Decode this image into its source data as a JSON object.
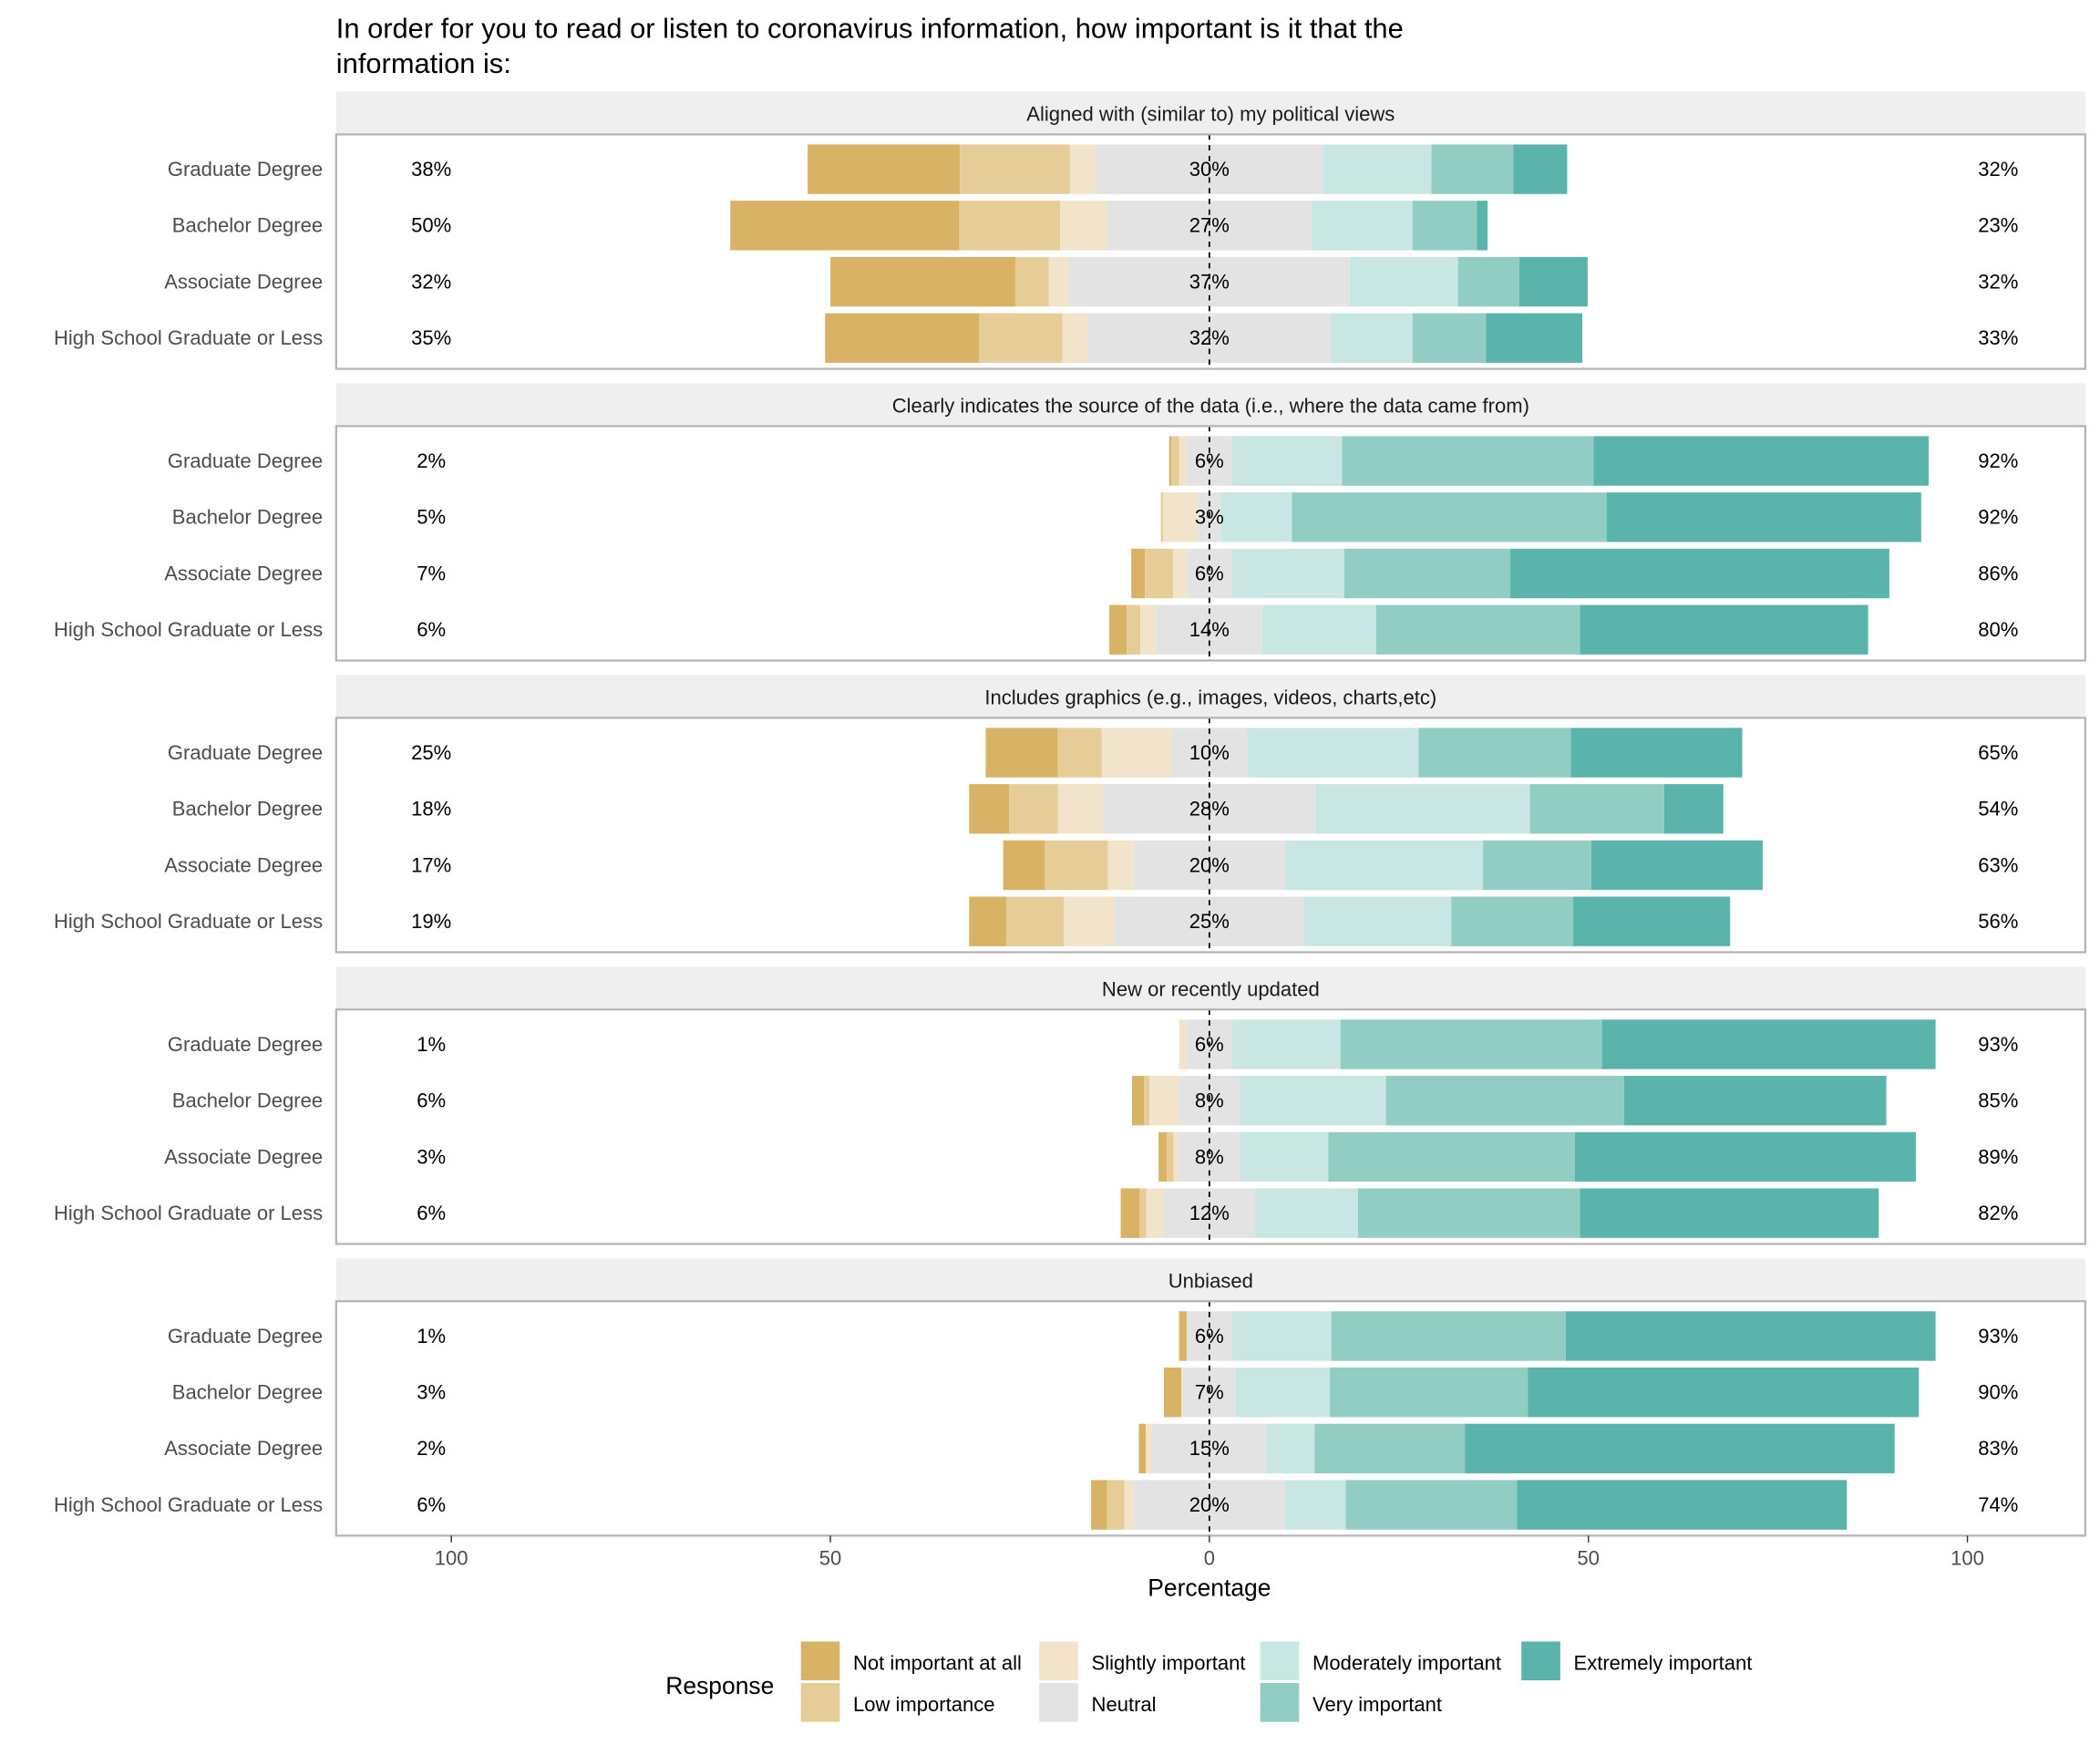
{
  "chart_data": {
    "type": "bar",
    "orientation": "horizontal-diverging-stacked",
    "title": "In order for you to read or listen to coronavirus information, how important is it that the information is:",
    "xlabel": "Percentage",
    "xlim": [
      -100,
      100
    ],
    "x_ticks": [
      -100,
      -50,
      0,
      50,
      100
    ],
    "x_tick_labels": [
      "100",
      "50",
      "0",
      "50",
      "100"
    ],
    "legend": {
      "title": "Response",
      "placement": "bottom",
      "entries": [
        "Not important at all",
        "Low importance",
        "Slightly important",
        "Neutral",
        "Moderately important",
        "Very important",
        "Extremely important"
      ]
    },
    "colors": [
      "#D8B365",
      "#E6CD98",
      "#F2E4CA",
      "#E3E3E3",
      "#C8E6E2",
      "#92CDC4",
      "#5AB4AC"
    ],
    "panels": [
      {
        "title": "Aligned with (similar to) my political views",
        "rows": [
          {
            "group": "Graduate Degree",
            "values": [
              20.1,
              14.5,
              3.4,
              30,
              14.3,
              10.8,
              7.1
            ],
            "left_label": "38%",
            "center_label": "30%",
            "right_label": "32%"
          },
          {
            "group": "Bachelor Degree",
            "values": [
              30.2,
              13.3,
              6.2,
              27,
              13.3,
              8.5,
              1.4
            ],
            "left_label": "50%",
            "center_label": "27%",
            "right_label": "23%"
          },
          {
            "group": "Associate Degree",
            "values": [
              24.4,
              4.4,
              2.7,
              37,
              14.3,
              8.1,
              9.0
            ],
            "left_label": "32%",
            "center_label": "37%",
            "right_label": "32%"
          },
          {
            "group": "High School Graduate or Less",
            "values": [
              20.3,
              11.0,
              3.4,
              32,
              10.8,
              9.7,
              12.7
            ],
            "left_label": "35%",
            "center_label": "32%",
            "right_label": "33%"
          }
        ]
      },
      {
        "title": "Clearly indicates the source of the data (i.e., where the data came from)",
        "rows": [
          {
            "group": "Graduate Degree",
            "values": [
              0.3,
              1.0,
              1.0,
              6,
              14.5,
              33.2,
              44.2
            ],
            "left_label": "2%",
            "center_label": "6%",
            "right_label": "92%"
          },
          {
            "group": "Bachelor Degree",
            "values": [
              0,
              0.3,
              4.6,
              3,
              9.4,
              41.5,
              41.5
            ],
            "left_label": "5%",
            "center_label": "3%",
            "right_label": "92%"
          },
          {
            "group": "Associate Degree",
            "values": [
              1.8,
              3.7,
              1.8,
              6,
              14.8,
              21.9,
              50.0
            ],
            "left_label": "7%",
            "center_label": "6%",
            "right_label": "86%"
          },
          {
            "group": "High School Graduate or Less",
            "values": [
              2.3,
              1.8,
              2.1,
              14,
              15.0,
              26.9,
              38.0
            ],
            "left_label": "6%",
            "center_label": "14%",
            "right_label": "80%"
          }
        ]
      },
      {
        "title": "Includes graphics (e.g., images, videos, charts,etc)",
        "rows": [
          {
            "group": "Graduate Degree",
            "values": [
              9.5,
              5.8,
              9.2,
              10,
              22.6,
              20.1,
              22.6
            ],
            "left_label": "25%",
            "center_label": "10%",
            "right_label": "65%"
          },
          {
            "group": "Bachelor Degree",
            "values": [
              5.3,
              6.4,
              6.0,
              28,
              28.3,
              17.7,
              7.8
            ],
            "left_label": "18%",
            "center_label": "28%",
            "right_label": "54%"
          },
          {
            "group": "Associate Degree",
            "values": [
              5.5,
              8.3,
              3.4,
              20,
              26.1,
              14.3,
              22.6
            ],
            "left_label": "17%",
            "center_label": "20%",
            "right_label": "63%"
          },
          {
            "group": "High School Graduate or Less",
            "values": [
              4.9,
              7.6,
              6.7,
              25,
              19.4,
              16.1,
              20.7
            ],
            "left_label": "19%",
            "center_label": "25%",
            "right_label": "56%"
          }
        ]
      },
      {
        "title": "New or recently updated",
        "rows": [
          {
            "group": "Graduate Degree",
            "values": [
              0,
              0,
              1.0,
              6,
              14.3,
              34.5,
              44.0
            ],
            "left_label": "1%",
            "center_label": "6%",
            "right_label": "93%"
          },
          {
            "group": "Bachelor Degree",
            "values": [
              1.6,
              0.7,
              3.9,
              8,
              19.3,
              31.4,
              34.6
            ],
            "left_label": "6%",
            "center_label": "8%",
            "right_label": "85%"
          },
          {
            "group": "Associate Degree",
            "values": [
              1.1,
              0.9,
              0.7,
              8,
              11.7,
              32.5,
              45.0
            ],
            "left_label": "3%",
            "center_label": "8%",
            "right_label": "89%"
          },
          {
            "group": "High School Graduate or Less",
            "values": [
              2.5,
              0.9,
              2.3,
              12,
              13.6,
              29.3,
              39.4
            ],
            "left_label": "6%",
            "center_label": "12%",
            "right_label": "82%"
          }
        ]
      },
      {
        "title": "Unbiased",
        "rows": [
          {
            "group": "Graduate Degree",
            "values": [
              1.0,
              0,
              0,
              6,
              13.1,
              30.9,
              48.8
            ],
            "left_label": "1%",
            "center_label": "6%",
            "right_label": "93%"
          },
          {
            "group": "Bachelor Degree",
            "values": [
              2.3,
              0,
              0.2,
              7,
              12.4,
              26.1,
              51.6
            ],
            "left_label": "3%",
            "center_label": "7%",
            "right_label": "90%"
          },
          {
            "group": "Associate Degree",
            "values": [
              0.9,
              0,
              0.9,
              15,
              6.4,
              19.8,
              56.7
            ],
            "left_label": "2%",
            "center_label": "15%",
            "right_label": "83%"
          },
          {
            "group": "High School Graduate or Less",
            "values": [
              2.1,
              2.3,
              1.2,
              20,
              8.0,
              22.6,
              43.5
            ],
            "left_label": "6%",
            "center_label": "20%",
            "right_label": "74%"
          }
        ]
      }
    ]
  }
}
